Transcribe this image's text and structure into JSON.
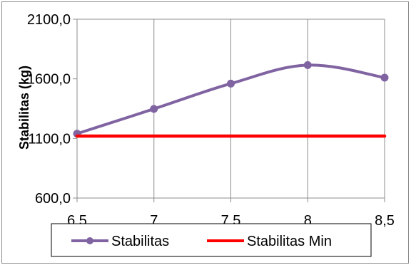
{
  "chart_data": {
    "type": "line",
    "x": [
      6.5,
      7,
      7.5,
      8,
      8.5
    ],
    "x_tick_labels": [
      "6,5",
      "7",
      "7,5",
      "8",
      "8,5"
    ],
    "series": [
      {
        "name": "Stabilitas",
        "values": [
          1140,
          1348,
          1560,
          1715,
          1610
        ],
        "color": "#8064a2",
        "marker": "circle"
      },
      {
        "name": "Stabilitas Min",
        "values": [
          1120,
          1120,
          1120,
          1120,
          1120
        ],
        "color": "#ff0000",
        "marker": "none"
      }
    ],
    "y_tick_values": [
      600,
      1100,
      1600,
      2100
    ],
    "y_tick_labels": [
      "600,0",
      "1100,0",
      "1600,0",
      "2100,0"
    ],
    "title": "",
    "xlabel": "",
    "ylabel": "Stabilitas (kg)",
    "xlim": [
      6.5,
      8.5
    ],
    "ylim": [
      600,
      2100
    ],
    "grid": "vertical",
    "legend_position": "bottom",
    "legend": [
      "Stabilitas",
      "Stabilitas Min"
    ]
  }
}
